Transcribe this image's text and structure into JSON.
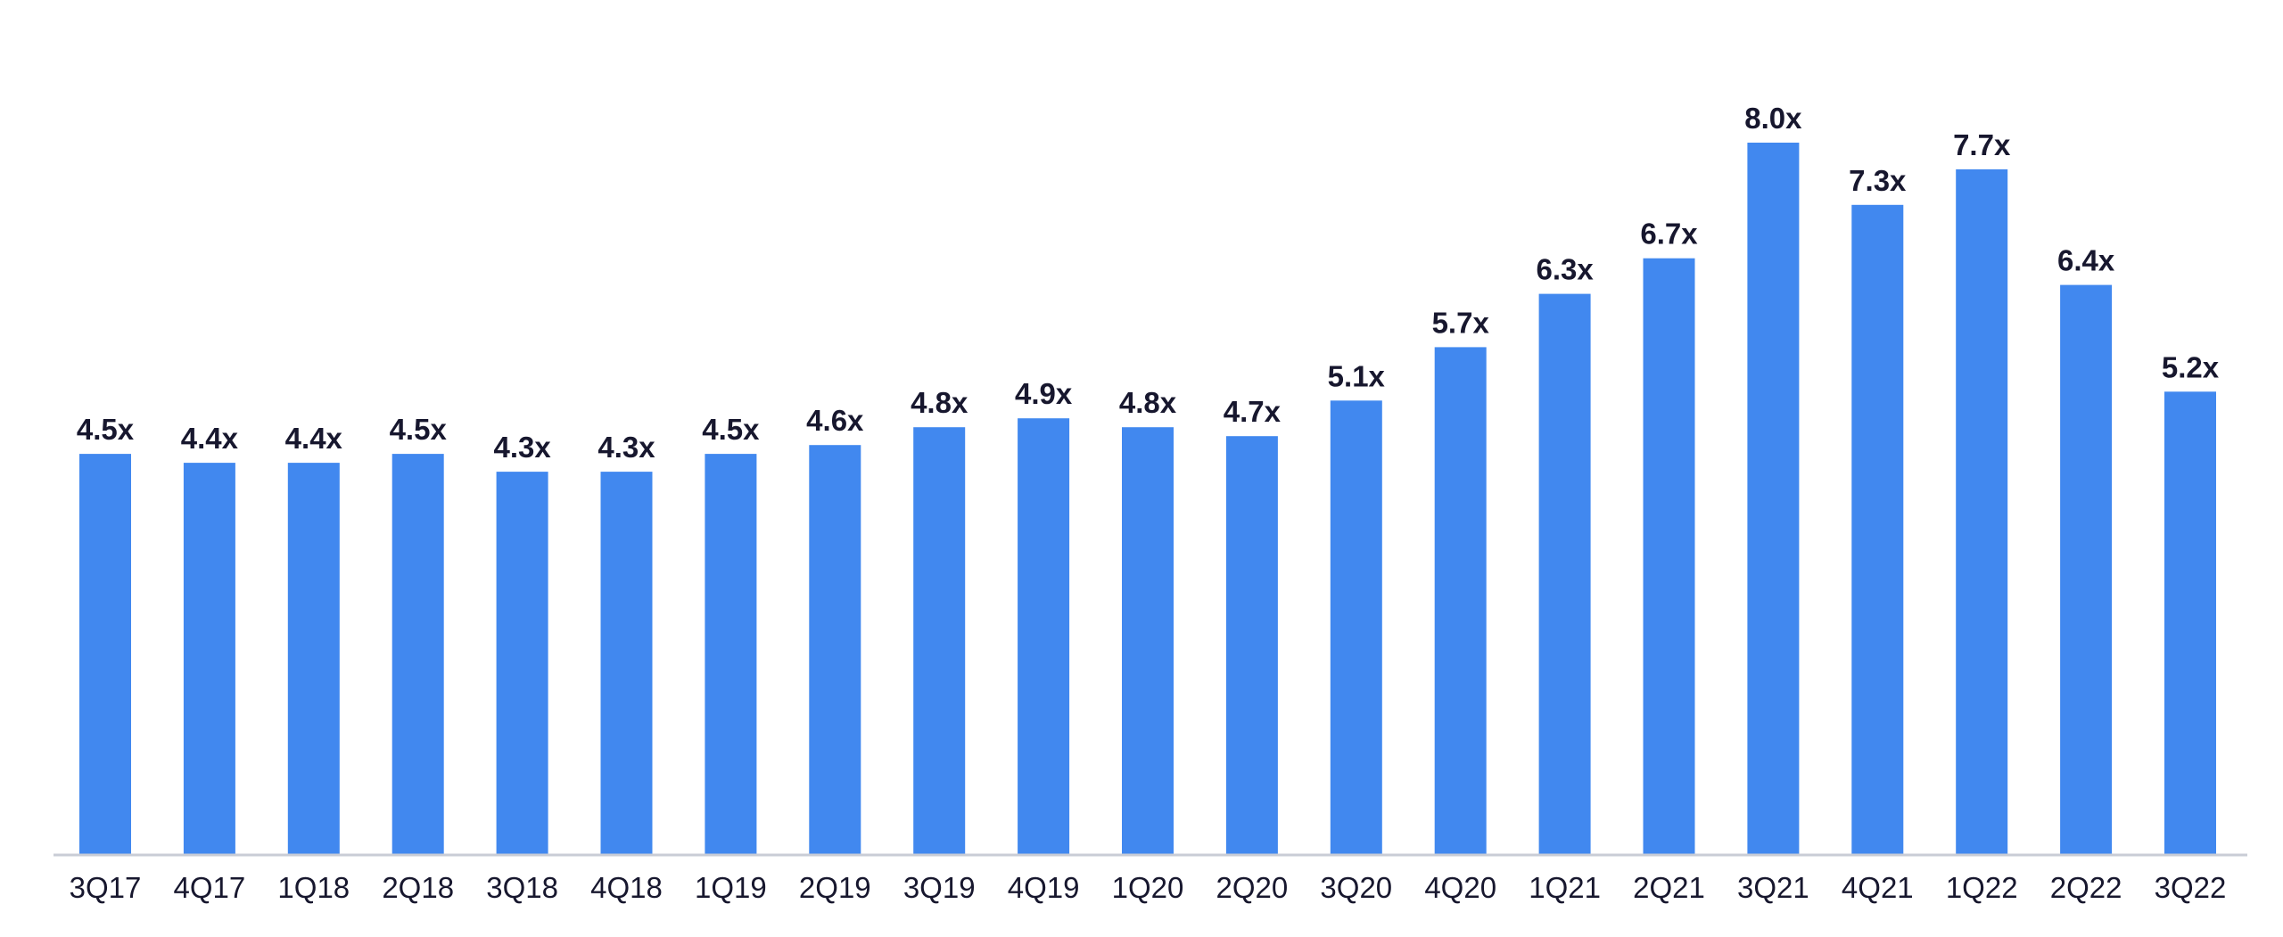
{
  "chart_data": {
    "type": "bar",
    "categories": [
      "3Q17",
      "4Q17",
      "1Q18",
      "2Q18",
      "3Q18",
      "4Q18",
      "1Q19",
      "2Q19",
      "3Q19",
      "4Q19",
      "1Q20",
      "2Q20",
      "3Q20",
      "4Q20",
      "1Q21",
      "2Q21",
      "3Q21",
      "4Q21",
      "1Q22",
      "2Q22",
      "3Q22"
    ],
    "values": [
      4.5,
      4.4,
      4.4,
      4.5,
      4.3,
      4.3,
      4.5,
      4.6,
      4.8,
      4.9,
      4.8,
      4.7,
      5.1,
      5.7,
      6.3,
      6.7,
      8.0,
      7.3,
      7.7,
      6.4,
      5.2
    ],
    "data_labels": [
      "4.5x",
      "4.4x",
      "4.4x",
      "4.5x",
      "4.3x",
      "4.3x",
      "4.5x",
      "4.6x",
      "4.8x",
      "4.9x",
      "4.8x",
      "4.7x",
      "5.1x",
      "5.7x",
      "6.3x",
      "6.7x",
      "8.0x",
      "7.3x",
      "7.7x",
      "6.4x",
      "5.2x"
    ],
    "ylim": [
      0,
      8.0
    ],
    "grid": false,
    "legend": "none",
    "colors": {
      "bar": "#4188ef",
      "label": "#17172e",
      "axis": "#c9cdd6"
    }
  }
}
